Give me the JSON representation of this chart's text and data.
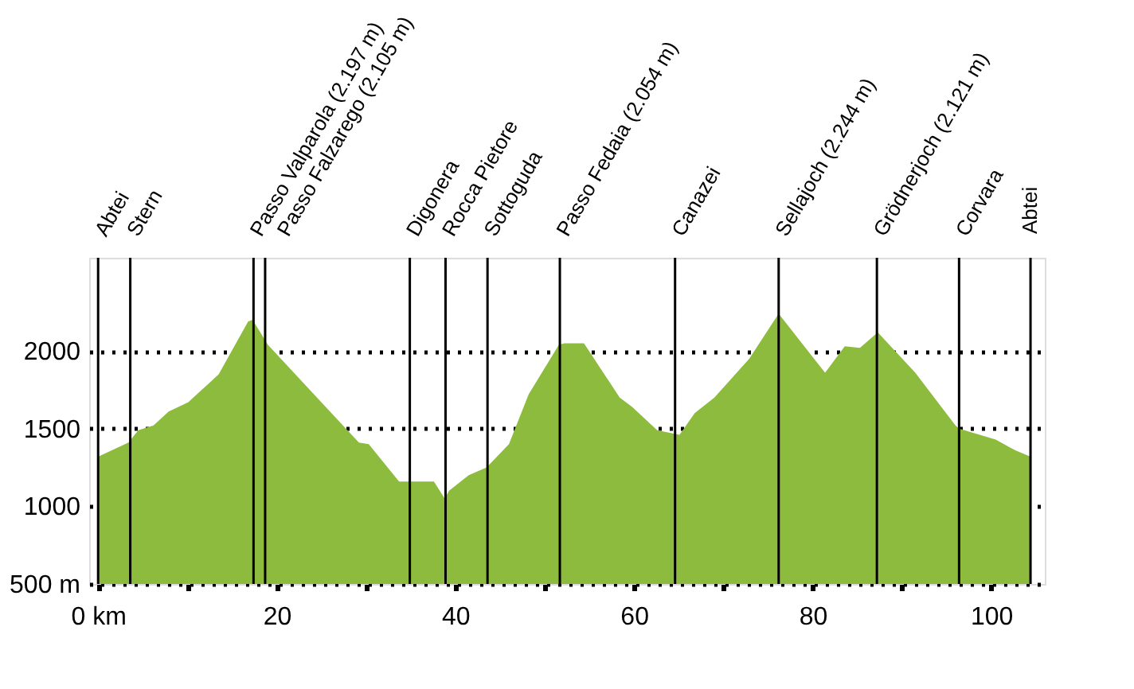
{
  "chart_data": {
    "type": "area",
    "x": [
      0,
      3.4,
      4.5,
      6.2,
      7.9,
      10.1,
      13.5,
      16.8,
      17.3,
      19.0,
      29.2,
      30.3,
      33.7,
      37.6,
      38.8,
      39.3,
      41.5,
      43.5,
      46.0,
      48.2,
      51.6,
      52.2,
      54.4,
      58.4,
      59.8,
      62.6,
      65.1,
      66.8,
      69.0,
      72.9,
      76.2,
      81.4,
      83.6,
      85.3,
      87.3,
      91.5,
      96.0,
      96.4,
      100.5,
      102.7,
      104.4
    ],
    "series": [
      {
        "color": "#8cbb3d",
        "values": [
          1320,
          1410,
          1490,
          1520,
          1610,
          1670,
          1850,
          2190,
          2200,
          2040,
          1410,
          1400,
          1160,
          1160,
          1050,
          1100,
          1200,
          1250,
          1400,
          1720,
          2040,
          2050,
          2050,
          1700,
          1640,
          1490,
          1460,
          1600,
          1700,
          1950,
          2240,
          1860,
          2030,
          2020,
          2120,
          1860,
          1520,
          1500,
          1430,
          1360,
          1320
        ]
      }
    ],
    "xlim": [
      -1,
      106
    ],
    "xticks": [
      {
        "value": 0,
        "label": "0 km"
      },
      {
        "value": 10,
        "label": null
      },
      20,
      {
        "value": 30,
        "label": null
      },
      40,
      {
        "value": 50,
        "label": null
      },
      60,
      {
        "value": 70,
        "label": null
      },
      80,
      {
        "value": 90,
        "label": null
      },
      100
    ],
    "ylim": [
      500,
      2600
    ],
    "yticks": [
      {
        "value": 500,
        "label": "500 m"
      },
      1000,
      1500,
      2000
    ],
    "grid": "y",
    "ref_lines": [
      {
        "axis": "x",
        "value": 0,
        "label": "Abtei",
        "color": "#000000"
      },
      {
        "axis": "x",
        "value": 3.6,
        "label": "Stern",
        "color": "#000000"
      },
      {
        "axis": "x",
        "value": 17.4,
        "label": "Passo Valparola (2.197 m)",
        "color": "#000000"
      },
      {
        "axis": "x",
        "value": 18.7,
        "label": "Passo Falzarego (2.105 m)",
        "color": "#000000"
      },
      {
        "axis": "x",
        "value": 34.9,
        "label": "Digonera",
        "color": "#000000"
      },
      {
        "axis": "x",
        "value": 38.9,
        "label": "Rocca Pietore",
        "color": "#000000"
      },
      {
        "axis": "x",
        "value": 43.6,
        "label": "Sottoguda",
        "color": "#000000"
      },
      {
        "axis": "x",
        "value": 51.7,
        "label": "Passo Fedaia (2.054 m)",
        "color": "#000000"
      },
      {
        "axis": "x",
        "value": 64.6,
        "label": "Canazei",
        "color": "#000000"
      },
      {
        "axis": "x",
        "value": 76.2,
        "label": "Sellajoch (2.244 m)",
        "color": "#000000"
      },
      {
        "axis": "x",
        "value": 87.2,
        "label": "Grödnerjoch (2.121 m)",
        "color": "#000000"
      },
      {
        "axis": "x",
        "value": 96.4,
        "label": "Corvara",
        "color": "#000000"
      },
      {
        "axis": "x",
        "value": 104.4,
        "label": "Abtei",
        "color": "#000000"
      }
    ]
  }
}
